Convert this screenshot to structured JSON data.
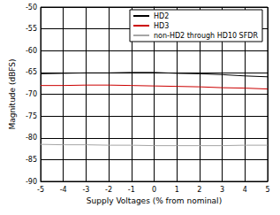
{
  "chart_data": {
    "type": "line",
    "x_label": "Supply Voltages (% from nominal)",
    "y_label": "Magnitude (dBFS)",
    "x": [
      -5,
      -4,
      -3,
      -2,
      -1,
      0,
      1,
      2,
      3,
      4,
      5
    ],
    "series": [
      {
        "name": "HD2",
        "color": "#000000",
        "values": [
          -65.3,
          -65.2,
          -65.1,
          -65.1,
          -65.0,
          -65.0,
          -65.2,
          -65.3,
          -65.5,
          -65.8,
          -66.0
        ]
      },
      {
        "name": "HD3",
        "color": "#cc0000",
        "values": [
          -68.0,
          -68.0,
          -67.9,
          -67.9,
          -68.0,
          -68.1,
          -68.2,
          -68.3,
          -68.5,
          -68.6,
          -68.8
        ]
      },
      {
        "name": "non-HD2 through HD10 SFDR",
        "color": "#a6a6a6",
        "values": [
          -81.5,
          -81.6,
          -81.6,
          -81.7,
          -81.7,
          -81.8,
          -81.8,
          -81.8,
          -81.8,
          -81.7,
          -81.7
        ]
      }
    ],
    "xlim": [
      -5,
      5
    ],
    "xticks": [
      -5,
      -4,
      -3,
      -2,
      -1,
      0,
      1,
      2,
      3,
      4,
      5
    ],
    "ylim": [
      -90,
      -50
    ],
    "yticks": [
      -90,
      -85,
      -80,
      -75,
      -70,
      -65,
      -60,
      -55,
      -50
    ],
    "grid": true,
    "legend": "upper right",
    "marker": "none",
    "line_style": "solid"
  }
}
